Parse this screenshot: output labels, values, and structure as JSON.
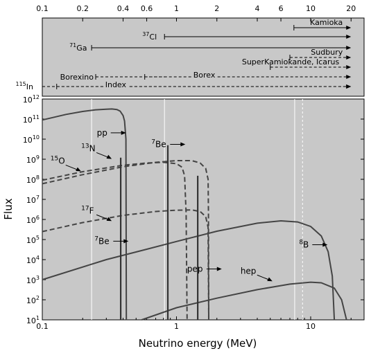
{
  "chart_data": [
    {
      "type": "range-bars",
      "panel": "experiment thresholds",
      "top_axis_ticks": [
        "0.1",
        "0.2",
        "0.4",
        "0.6",
        "1",
        "2",
        "4",
        "6",
        "10",
        "20"
      ],
      "experiments": [
        {
          "name": "Kamioka",
          "threshold_mev": 7.5,
          "end_mev": 20,
          "style": "solid",
          "label_side": "above"
        },
        {
          "name": "37 Cl",
          "sup": "37",
          "chem": "Cl",
          "threshold_mev": 0.814,
          "end_mev": 20,
          "style": "solid",
          "label_side": "left"
        },
        {
          "name": "71 Ga",
          "sup": "71",
          "chem": "Ga",
          "threshold_mev": 0.233,
          "end_mev": 20,
          "style": "solid",
          "label_side": "left"
        },
        {
          "name": "Sudbury",
          "threshold_mev": 7.0,
          "end_mev": 20,
          "style": "dashed",
          "label_side": "above"
        },
        {
          "name": "SuperKamiokande, Icarus",
          "threshold_mev": 5.0,
          "end_mev": 20,
          "style": "dashed",
          "label_side": "above"
        },
        {
          "name": "Borexino",
          "threshold_mev": 0.25,
          "end_mev": 0.862,
          "style": "dashed",
          "label_side": "left"
        },
        {
          "name": "Borex",
          "threshold_mev": 0.58,
          "end_mev": 20,
          "style": "dashed",
          "label_side": "inline"
        },
        {
          "name": "115 In",
          "sup": "115",
          "chem": "In",
          "threshold_mev": 0.1,
          "end_mev": 20,
          "style": "dashed",
          "label_side": "left"
        },
        {
          "name": "Index",
          "threshold_mev": 0.128,
          "end_mev": 20,
          "style": "dashed",
          "label_side": "inline"
        }
      ]
    },
    {
      "type": "line",
      "xlabel": "Neutrino energy (MeV)",
      "ylabel": "Flux",
      "x_scale": "log",
      "y_scale": "log",
      "xlim": [
        0.1,
        25
      ],
      "ylim": [
        10,
        1000000000000.0
      ],
      "x_ticks": [
        "0.1",
        "1",
        "10"
      ],
      "y_tick_base": "10",
      "y_tick_exponents": [
        "1",
        "2",
        "3",
        "4",
        "5",
        "6",
        "7",
        "8",
        "9",
        "10",
        "11",
        "12"
      ],
      "grid_lines_mev": [
        0.233,
        0.814,
        7.6,
        8.7
      ],
      "series": [
        {
          "name": "pp",
          "style": "solid",
          "points": [
            [
              0.1,
              90000000000.0
            ],
            [
              0.15,
              170000000000.0
            ],
            [
              0.2,
              240000000000.0
            ],
            [
              0.25,
              290000000000.0
            ],
            [
              0.3,
              310000000000.0
            ],
            [
              0.33,
              320000000000.0
            ],
            [
              0.36,
              300000000000.0
            ],
            [
              0.38,
              250000000000.0
            ],
            [
              0.4,
              150000000000.0
            ],
            [
              0.41,
              80000000000.0
            ],
            [
              0.42,
              10000000000.0
            ],
            [
              0.423,
              10
            ]
          ]
        },
        {
          "name": "13N",
          "style": "dashed",
          "points": [
            [
              0.1,
              90000000.0
            ],
            [
              0.2,
              240000000.0
            ],
            [
              0.4,
              500000000.0
            ],
            [
              0.6,
              650000000.0
            ],
            [
              0.8,
              700000000.0
            ],
            [
              1.0,
              600000000.0
            ],
            [
              1.1,
              400000000.0
            ],
            [
              1.15,
              150000000.0
            ],
            [
              1.18,
              2000000.0
            ],
            [
              1.2,
              10
            ]
          ]
        },
        {
          "name": "15O",
          "style": "dashed",
          "points": [
            [
              0.1,
              60000000.0
            ],
            [
              0.2,
              170000000.0
            ],
            [
              0.4,
              420000000.0
            ],
            [
              0.7,
              700000000.0
            ],
            [
              1.0,
              850000000.0
            ],
            [
              1.3,
              850000000.0
            ],
            [
              1.5,
              650000000.0
            ],
            [
              1.65,
              350000000.0
            ],
            [
              1.72,
              100000000.0
            ],
            [
              1.73,
              2000000.0
            ],
            [
              1.74,
              10
            ]
          ]
        },
        {
          "name": "17F",
          "style": "dashed",
          "points": [
            [
              0.1,
              250000.0
            ],
            [
              0.2,
              700000.0
            ],
            [
              0.4,
              1600000.0
            ],
            [
              0.7,
              2500000.0
            ],
            [
              1.0,
              2900000.0
            ],
            [
              1.3,
              3000000.0
            ],
            [
              1.5,
              2500000.0
            ],
            [
              1.65,
              1400000.0
            ],
            [
              1.72,
              400000.0
            ],
            [
              1.74,
              10
            ]
          ]
        },
        {
          "name": "8B",
          "style": "solid",
          "points": [
            [
              0.1,
              1000.0
            ],
            [
              0.3,
              10000.0
            ],
            [
              0.6,
              33000.0
            ],
            [
              1.0,
              80000.0
            ],
            [
              2.0,
              260000.0
            ],
            [
              4.0,
              650000.0
            ],
            [
              6.0,
              850000.0
            ],
            [
              8.0,
              750000.0
            ],
            [
              10.0,
              450000.0
            ],
            [
              12.0,
              150000.0
            ],
            [
              13.5,
              25000.0
            ],
            [
              14.5,
              1500.0
            ],
            [
              15.0,
              10
            ]
          ]
        },
        {
          "name": "hep",
          "style": "solid",
          "points": [
            [
              0.55,
              10
            ],
            [
              1.0,
              40
            ],
            [
              2.0,
              120
            ],
            [
              4.0,
              320
            ],
            [
              7.0,
              600
            ],
            [
              10.0,
              750
            ],
            [
              12.0,
              700
            ],
            [
              15.0,
              380
            ],
            [
              17.0,
              100
            ],
            [
              18.5,
              10
            ]
          ]
        }
      ],
      "lines": [
        {
          "name": "7Be",
          "energy_mev": 0.384,
          "flux": 1200000000.0,
          "style": "solid"
        },
        {
          "name": "7Be",
          "energy_mev": 0.862,
          "flux": 5000000000.0,
          "style": "solid"
        },
        {
          "name": "pep",
          "energy_mev": 1.44,
          "flux": 150000000.0,
          "style": "solid"
        }
      ],
      "labels": [
        {
          "text": "pp",
          "at_mev": 0.255,
          "at_flux": 15000000000.0,
          "arrow": "right"
        },
        {
          "text": "Be",
          "sup": "7",
          "at_mev": 0.65,
          "at_flux": 4000000000.0,
          "arrow": "right"
        },
        {
          "text": "N",
          "sup": "13",
          "at_mev": 0.195,
          "at_flux": 2500000000.0,
          "arrow": "diag"
        },
        {
          "text": "O",
          "sup": "15",
          "at_mev": 0.115,
          "at_flux": 600000000.0,
          "arrow": "diag"
        },
        {
          "text": "F",
          "sup": "17",
          "at_mev": 0.195,
          "at_flux": 2000000.0,
          "arrow": "diag"
        },
        {
          "text": "Be",
          "sup": "7",
          "at_mev": 0.245,
          "at_flux": 60000.0,
          "arrow": "right"
        },
        {
          "text": "pep",
          "at_mev": 1.2,
          "at_flux": 2500.0,
          "arrow": "right"
        },
        {
          "text": "hep",
          "at_mev": 3.0,
          "at_flux": 2000.0,
          "arrow": "diag"
        },
        {
          "text": "B",
          "sup": "8",
          "at_mev": 8.2,
          "at_flux": 40000.0,
          "arrow": "right"
        }
      ]
    }
  ]
}
